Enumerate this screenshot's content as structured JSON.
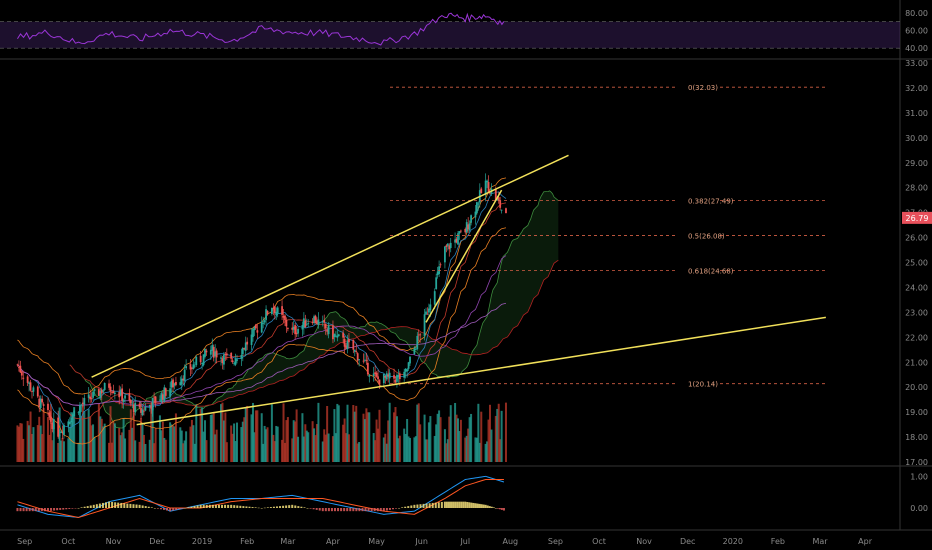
{
  "chart_data": [
    {
      "type": "line",
      "panel": "rsi",
      "levels": [
        80,
        60,
        40
      ],
      "band": [
        40,
        70
      ],
      "tick_labels": [
        "80.00",
        "60.00",
        "40.00"
      ],
      "series": [
        {
          "color": "#9a35d6",
          "x": [
            "2018-08-27",
            "2018-09-17",
            "2018-10-08",
            "2018-10-29",
            "2018-11-19",
            "2018-12-10",
            "2018-12-31",
            "2019-01-21",
            "2019-02-11",
            "2019-03-04",
            "2019-03-25",
            "2019-04-15",
            "2019-05-06",
            "2019-05-27",
            "2019-06-17",
            "2019-07-01",
            "2019-07-15",
            "2019-07-29"
          ],
          "values": [
            52,
            58,
            45,
            57,
            50,
            60,
            55,
            48,
            62,
            58,
            57,
            52,
            46,
            56,
            78,
            74,
            77,
            67
          ]
        }
      ],
      "ylim": [
        30,
        90
      ]
    },
    {
      "type": "candlestick",
      "panel": "price",
      "current_price": "26.79",
      "ylim": [
        17,
        33
      ],
      "tick_labels": [
        "33.00",
        "32.00",
        "31.00",
        "30.00",
        "29.00",
        "28.00",
        "27.00",
        "26.00",
        "25.00",
        "24.00",
        "23.00",
        "22.00",
        "21.00",
        "20.00",
        "19.00",
        "18.00",
        "17.00"
      ],
      "x_labels": [
        "Sep",
        "Oct",
        "Nov",
        "Dec",
        "2019",
        "Feb",
        "Mar",
        "Apr",
        "May",
        "Jun",
        "Jul",
        "Aug",
        "Sep",
        "Oct",
        "Nov",
        "Dec",
        "2020",
        "Feb",
        "Mar",
        "Apr"
      ],
      "price_path": {
        "x": [
          "2018-08-27",
          "2018-09-10",
          "2018-09-24",
          "2018-10-08",
          "2018-10-29",
          "2018-11-19",
          "2018-12-03",
          "2018-12-17",
          "2019-01-07",
          "2019-01-21",
          "2019-02-04",
          "2019-02-18",
          "2019-03-04",
          "2019-03-18",
          "2019-04-01",
          "2019-04-15",
          "2019-05-01",
          "2019-05-20",
          "2019-06-03",
          "2019-06-17",
          "2019-07-01",
          "2019-07-15",
          "2019-07-22",
          "2019-07-29"
        ],
        "values": [
          20.9,
          19.5,
          18.2,
          19.2,
          20.1,
          19.0,
          19.6,
          20.4,
          21.5,
          21.0,
          22.0,
          23.3,
          22.2,
          22.8,
          22.1,
          21.5,
          20.3,
          20.4,
          22.7,
          25.5,
          26.3,
          28.2,
          27.6,
          26.8
        ]
      },
      "fib_levels": [
        {
          "label": "0(32.03)",
          "value": 32.03
        },
        {
          "label": "0.382(27.49)",
          "value": 27.49
        },
        {
          "label": "0.5(26.08)",
          "value": 26.08
        },
        {
          "label": "0.618(24.68)",
          "value": 24.68
        },
        {
          "label": "1(20.14)",
          "value": 20.14
        }
      ],
      "trendlines": [
        {
          "from": [
            "2018-10-17",
            20.4
          ],
          "to": [
            "2019-07-20",
            28.0
          ],
          "extend_to": [
            "2019-09-10",
            29.3
          ]
        },
        {
          "from": [
            "2018-11-17",
            18.5
          ],
          "to": [
            "2020-03-05",
            22.8
          ]
        },
        {
          "from": [
            "2019-06-04",
            22.6
          ],
          "to": [
            "2019-07-26",
            27.9
          ]
        }
      ]
    },
    {
      "type": "line",
      "panel": "macd",
      "tick_labels": [
        "1.00",
        "0.00"
      ],
      "ylim": [
        -0.6,
        1.2
      ],
      "series": [
        {
          "color": "#2196f3",
          "values": [
            0.1,
            -0.2,
            -0.3,
            0.2,
            0.4,
            -0.1,
            0.1,
            0.3,
            0.3,
            0.4,
            0.2,
            0.0,
            -0.2,
            -0.1,
            0.5,
            0.9,
            1.0,
            0.8
          ]
        },
        {
          "color": "#ff5722",
          "values": [
            0.2,
            -0.1,
            -0.3,
            0.0,
            0.3,
            0.0,
            0.0,
            0.2,
            0.3,
            0.3,
            0.3,
            0.1,
            -0.1,
            -0.2,
            0.3,
            0.7,
            0.9,
            0.9
          ]
        }
      ]
    }
  ]
}
